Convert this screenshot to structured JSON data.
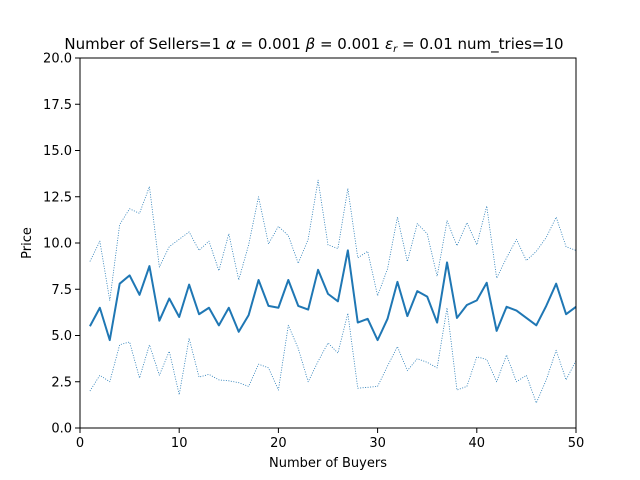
{
  "chart_data": {
    "type": "line",
    "title": "Number of Sellers=1  α = 0.001  β = 0.001  εr = 0.01 num_tries=10",
    "title_parts": {
      "sellers": "Number of Sellers=1",
      "alpha_sym": "α",
      "alpha_val": " = 0.001",
      "beta_sym": "β",
      "beta_val": " = 0.001",
      "eps_sym": "ε",
      "eps_sub": "r",
      "eps_val": " = 0.01",
      "tries": "num_tries=10"
    },
    "xlabel": "Number of Buyers",
    "ylabel": "Price",
    "xlim": [
      0,
      50
    ],
    "ylim": [
      0,
      20
    ],
    "xticks": [
      0,
      10,
      20,
      30,
      40,
      50
    ],
    "yticks": [
      0.0,
      2.5,
      5.0,
      7.5,
      10.0,
      12.5,
      15.0,
      17.5,
      20.0
    ],
    "xtick_labels": [
      "0",
      "10",
      "20",
      "30",
      "40",
      "50"
    ],
    "ytick_labels": [
      "0.0",
      "2.5",
      "5.0",
      "7.5",
      "10.0",
      "12.5",
      "15.0",
      "17.5",
      "20.0"
    ],
    "grid": false,
    "legend": null,
    "colors": {
      "line": "#1f77b4",
      "axes": "#000000",
      "background": "#ffffff"
    },
    "x": [
      1,
      2,
      3,
      4,
      5,
      6,
      7,
      8,
      9,
      10,
      11,
      12,
      13,
      14,
      15,
      16,
      17,
      18,
      19,
      20,
      21,
      22,
      23,
      24,
      25,
      26,
      27,
      28,
      29,
      30,
      31,
      32,
      33,
      34,
      35,
      36,
      37,
      38,
      39,
      40,
      41,
      42,
      43,
      44,
      45,
      46,
      47,
      48,
      49,
      50
    ],
    "series": [
      {
        "role": "mean",
        "style": "solid",
        "values": [
          5.5,
          6.5,
          4.75,
          7.8,
          8.25,
          7.2,
          8.75,
          5.8,
          7.0,
          6.0,
          7.75,
          6.15,
          6.5,
          5.55,
          6.5,
          5.2,
          6.1,
          8.0,
          6.6,
          6.5,
          8.0,
          6.6,
          6.4,
          8.55,
          7.25,
          6.85,
          9.6,
          5.7,
          5.9,
          4.75,
          5.9,
          7.9,
          6.05,
          7.4,
          7.1,
          5.7,
          8.95,
          5.95,
          6.65,
          6.9,
          7.85,
          5.25,
          6.55,
          6.35,
          5.95,
          5.55,
          6.6,
          7.8,
          6.15,
          6.55
        ]
      },
      {
        "role": "upper",
        "style": "dotted",
        "values": [
          9.0,
          10.1,
          6.9,
          11.0,
          11.85,
          11.6,
          13.05,
          8.7,
          9.8,
          10.2,
          10.6,
          9.6,
          10.1,
          8.5,
          10.5,
          8.0,
          9.9,
          12.5,
          9.95,
          10.9,
          10.4,
          8.9,
          10.2,
          13.4,
          9.9,
          9.7,
          12.95,
          9.2,
          9.55,
          7.15,
          8.6,
          11.4,
          9.0,
          11.05,
          10.5,
          8.2,
          11.2,
          9.85,
          11.1,
          9.9,
          12.0,
          8.1,
          9.2,
          10.2,
          9.05,
          9.55,
          10.3,
          11.4,
          9.8,
          9.6
        ]
      },
      {
        "role": "lower",
        "style": "dotted",
        "values": [
          2.0,
          2.85,
          2.5,
          4.5,
          4.65,
          2.7,
          4.5,
          2.85,
          4.15,
          1.8,
          4.85,
          2.75,
          2.9,
          2.6,
          2.55,
          2.45,
          2.25,
          3.45,
          3.25,
          2.05,
          5.55,
          4.3,
          2.5,
          3.6,
          4.6,
          4.05,
          6.2,
          2.15,
          2.2,
          2.25,
          3.35,
          4.4,
          3.1,
          3.75,
          3.55,
          3.25,
          6.5,
          2.05,
          2.25,
          3.85,
          3.7,
          2.5,
          3.95,
          2.5,
          2.85,
          1.35,
          2.6,
          4.2,
          2.6,
          3.65
        ]
      }
    ]
  }
}
